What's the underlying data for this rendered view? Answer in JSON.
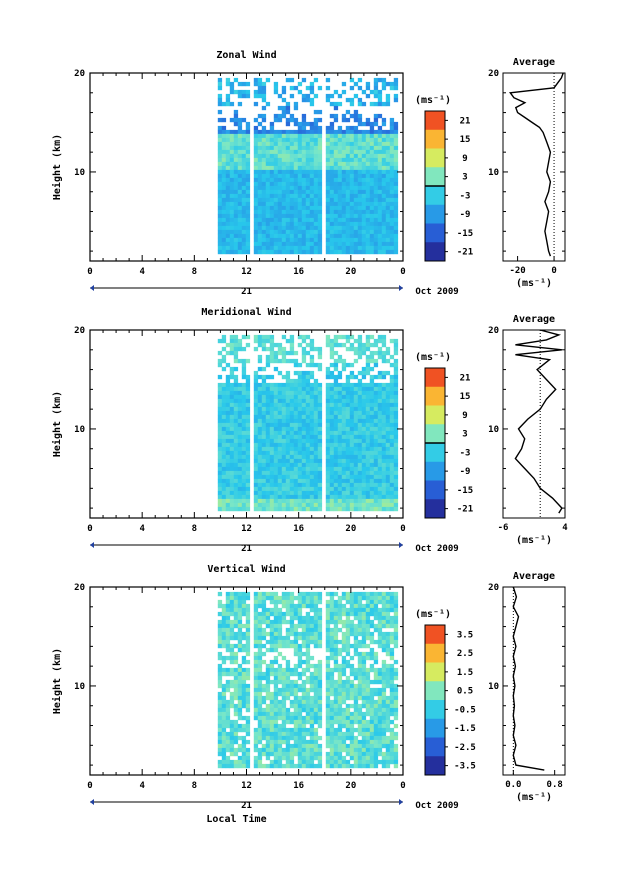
{
  "chart_data": [
    {
      "type": "heatmap",
      "title": "Zonal Wind",
      "ylabel": "Height (km)",
      "ylim": [
        1,
        20
      ],
      "xlim": [
        0,
        24
      ],
      "x_ticks": [
        "0",
        "4",
        "8",
        "12",
        "16",
        "20",
        "0"
      ],
      "y_ticks": [
        "10",
        "20"
      ],
      "day_label": "21",
      "date_label": "Oct 2009",
      "data_start_hour": 9.8,
      "data_end_hour": 23.6,
      "gaps_hour": [
        12.3,
        17.8
      ],
      "colorbar": {
        "unit": "(ms⁻¹)",
        "ticks": [
          "21",
          "15",
          "9",
          "3",
          "-3",
          "-9",
          "-15",
          "-21"
        ],
        "range": [
          -24,
          24
        ]
      },
      "profile": {
        "title": "Average",
        "xlabel": "(ms⁻¹)",
        "xlim": [
          -28,
          6
        ],
        "x_ticks": [
          "-20",
          "0"
        ],
        "height_km": [
          1.5,
          2,
          3,
          4,
          5,
          6,
          7,
          8,
          9,
          10,
          11,
          12,
          13,
          14,
          14.5,
          15,
          15.5,
          16,
          16.5,
          17,
          17.5,
          18,
          18.5,
          19,
          19.5,
          20
        ],
        "values": [
          -2,
          -3,
          -4,
          -5,
          -4,
          -3,
          -5,
          -3,
          -2,
          -4,
          -3,
          -2,
          -4,
          -6,
          -8,
          -12,
          -16,
          -20,
          -21,
          -16,
          -22,
          -24,
          0,
          2,
          4,
          5
        ]
      }
    },
    {
      "type": "heatmap",
      "title": "Meridional Wind",
      "ylabel": "Height (km)",
      "ylim": [
        1,
        20
      ],
      "xlim": [
        0,
        24
      ],
      "x_ticks": [
        "0",
        "4",
        "8",
        "12",
        "16",
        "20",
        "0"
      ],
      "y_ticks": [
        "10",
        "20"
      ],
      "day_label": "21",
      "date_label": "Oct 2009",
      "data_start_hour": 9.8,
      "data_end_hour": 23.6,
      "gaps_hour": [
        12.3,
        17.8
      ],
      "colorbar": {
        "unit": "(ms⁻¹)",
        "ticks": [
          "21",
          "15",
          "9",
          "3",
          "-3",
          "-9",
          "-15",
          "-21"
        ],
        "range": [
          -24,
          24
        ]
      },
      "profile": {
        "title": "Average",
        "xlabel": "(ms⁻¹)",
        "xlim": [
          -6,
          4
        ],
        "x_ticks": [
          "-6",
          "4"
        ],
        "height_km": [
          1.5,
          2,
          3,
          4,
          5,
          6,
          7,
          8,
          9,
          10,
          11,
          12,
          13,
          14,
          15,
          16,
          17,
          17.5,
          18,
          18.5,
          19,
          19.5,
          20
        ],
        "values": [
          3,
          3.5,
          2,
          0,
          -1,
          -2.5,
          -4,
          -3,
          -2.5,
          -3.5,
          -2,
          0,
          1,
          2.5,
          1,
          -0.5,
          1.5,
          -4,
          3.5,
          -4,
          1,
          3,
          0
        ]
      }
    },
    {
      "type": "heatmap",
      "title": "Vertical Wind",
      "ylabel": "Height (km)",
      "xlabel": "Local Time",
      "ylim": [
        1,
        20
      ],
      "xlim": [
        0,
        24
      ],
      "x_ticks": [
        "0",
        "4",
        "8",
        "12",
        "16",
        "20",
        "0"
      ],
      "y_ticks": [
        "10",
        "20"
      ],
      "day_label": "21",
      "date_label": "Oct 2009",
      "data_start_hour": 9.8,
      "data_end_hour": 23.6,
      "gaps_hour": [
        12.3,
        17.8
      ],
      "colorbar": {
        "unit": "(ms⁻¹)",
        "ticks": [
          "3.5",
          "2.5",
          "1.5",
          "0.5",
          "-0.5",
          "-1.5",
          "-2.5",
          "-3.5"
        ],
        "range": [
          -4,
          4
        ]
      },
      "profile": {
        "title": "Average",
        "xlabel": "(ms⁻¹)",
        "xlim": [
          -0.2,
          1.0
        ],
        "x_ticks": [
          "0.0",
          "0.8"
        ],
        "height_km": [
          1.5,
          2,
          3,
          4,
          5,
          6,
          7,
          8,
          9,
          10,
          11,
          12,
          13,
          14,
          15,
          16,
          17,
          18,
          19,
          20
        ],
        "values": [
          0.6,
          0.05,
          0.0,
          0.05,
          0.0,
          0.03,
          0.0,
          0.02,
          0.0,
          0.03,
          0.0,
          0.04,
          0.0,
          0.05,
          0.0,
          0.05,
          0.1,
          0.0,
          0.06,
          0.0
        ]
      }
    }
  ]
}
